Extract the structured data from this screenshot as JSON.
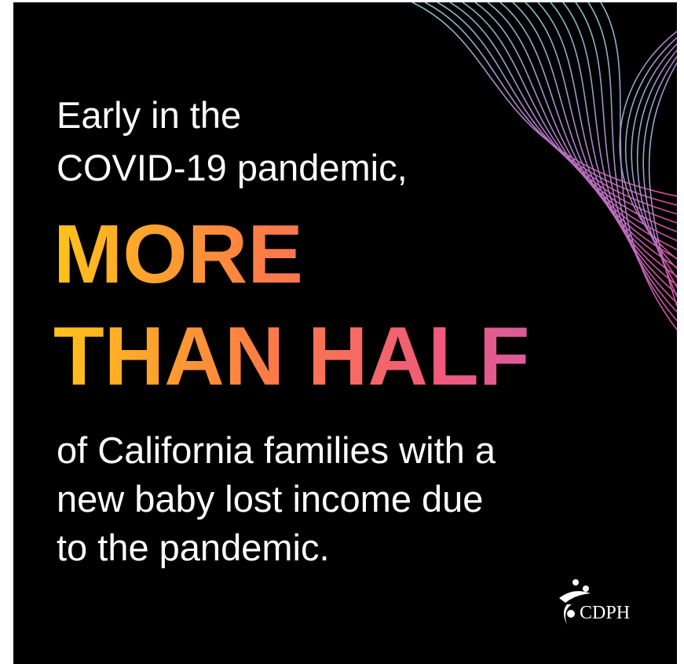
{
  "intro": [
    "Early in the",
    "COVID-19 pandemic,"
  ],
  "headline": [
    "MORE",
    "THAN HALF"
  ],
  "body": [
    "of California families with a",
    "new baby lost income due",
    "to the pandemic."
  ],
  "logo": "CDPH"
}
